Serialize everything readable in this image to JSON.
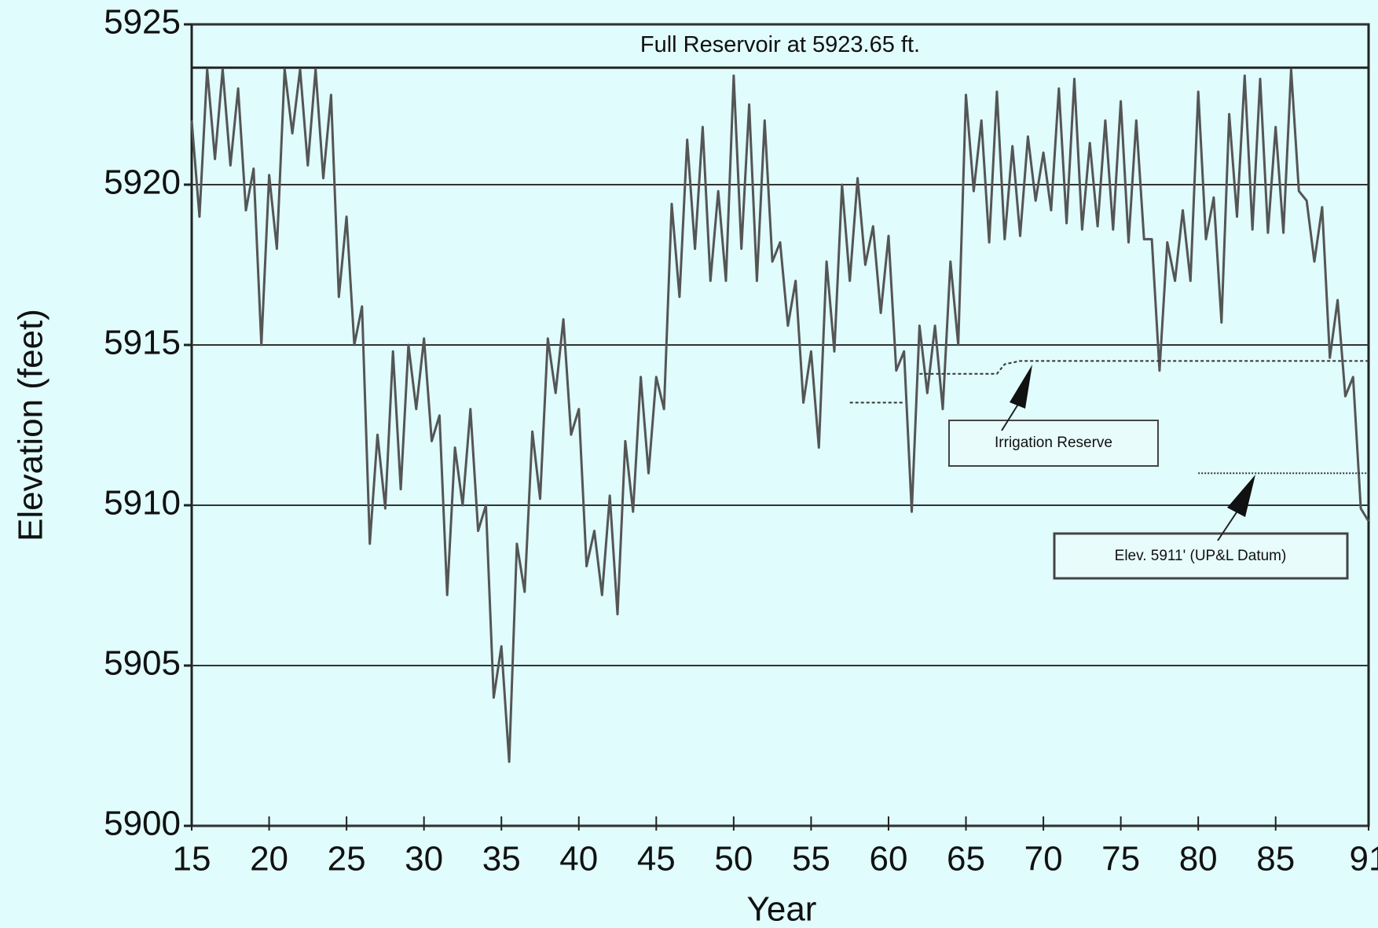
{
  "chart_data": {
    "type": "line",
    "xlabel": "Year",
    "ylabel": "Elevation (feet)",
    "color": "#555555",
    "x": [
      15,
      15.5,
      16,
      16.5,
      17,
      17.5,
      18,
      18.5,
      19,
      19.5,
      20,
      20.5,
      21,
      21.5,
      22,
      22.5,
      23,
      23.5,
      24,
      24.5,
      25,
      25.5,
      26,
      26.5,
      27,
      27.5,
      28,
      28.5,
      29,
      29.5,
      30,
      30.5,
      31,
      31.5,
      32,
      32.5,
      33,
      33.5,
      34,
      34.5,
      35,
      35.5,
      36,
      36.5,
      37,
      37.5,
      38,
      38.5,
      39,
      39.5,
      40,
      40.5,
      41,
      41.5,
      42,
      42.5,
      43,
      43.5,
      44,
      44.5,
      45,
      45.5,
      46,
      46.5,
      47,
      47.5,
      48,
      48.5,
      49,
      49.5,
      50,
      50.5,
      51,
      51.5,
      52,
      52.5,
      53,
      53.5,
      54,
      54.5,
      55,
      55.5,
      56,
      56.5,
      57,
      57.5,
      58,
      58.5,
      59,
      59.5,
      60,
      60.5,
      61,
      61.5,
      62,
      62.5,
      63,
      63.5,
      64,
      64.5,
      65,
      65.5,
      66,
      66.5,
      67,
      67.5,
      68,
      68.5,
      69,
      69.5,
      70,
      70.5,
      71,
      71.5,
      72,
      72.5,
      73,
      73.5,
      74,
      74.5,
      75,
      75.5,
      76,
      76.5,
      77,
      77.5,
      78,
      78.5,
      79,
      79.5,
      80,
      80.5,
      81,
      81.5,
      82,
      82.5,
      83,
      83.5,
      84,
      84.5,
      85,
      85.5,
      86,
      86.5,
      87,
      87.5,
      88,
      88.5,
      89,
      89.5,
      90,
      90.5,
      91
    ],
    "values": [
      5922,
      5919,
      5923.6,
      5920.8,
      5923.6,
      5920.6,
      5923,
      5919.2,
      5920.5,
      5915,
      5920.3,
      5918,
      5923.6,
      5921.6,
      5923.6,
      5920.6,
      5923.6,
      5920.2,
      5922.8,
      5916.5,
      5919,
      5915,
      5916.2,
      5908.8,
      5912.2,
      5909.9,
      5914.8,
      5910.5,
      5915,
      5913,
      5915.2,
      5912,
      5912.8,
      5907.2,
      5911.8,
      5910,
      5913,
      5909.2,
      5910,
      5904,
      5905.6,
      5902,
      5908.8,
      5907.3,
      5912.3,
      5910.2,
      5915.2,
      5913.5,
      5915.8,
      5912.2,
      5913,
      5908.1,
      5909.2,
      5907.2,
      5910.3,
      5906.6,
      5912,
      5909.8,
      5914,
      5911,
      5914,
      5913,
      5919.4,
      5916.5,
      5921.4,
      5918,
      5921.8,
      5917,
      5919.8,
      5917,
      5923.4,
      5918,
      5922.5,
      5917,
      5922,
      5917.6,
      5918.2,
      5915.6,
      5917,
      5913.2,
      5914.8,
      5911.8,
      5917.6,
      5914.8,
      5920,
      5917,
      5920.2,
      5917.5,
      5918.7,
      5916,
      5918.4,
      5914.2,
      5914.8,
      5909.8,
      5915.6,
      5913.5,
      5915.6,
      5913,
      5917.6,
      5915,
      5922.8,
      5919.8,
      5922,
      5918.2,
      5922.9,
      5918.3,
      5921.2,
      5918.4,
      5921.5,
      5919.5,
      5921,
      5919.2,
      5923,
      5918.8,
      5923.3,
      5918.6,
      5921.3,
      5918.7,
      5922,
      5918.6,
      5922.6,
      5918.2,
      5922,
      5918.3,
      5918.3,
      5914.2,
      5918.2,
      5917,
      5919.2,
      5917,
      5922.9,
      5918.3,
      5919.6,
      5915.7,
      5922.2,
      5919,
      5923.4,
      5918.6,
      5923.3,
      5918.5,
      5921.8,
      5918.5,
      5923.6,
      5919.8,
      5919.5,
      5917.6,
      5919.3,
      5914.6,
      5916.4,
      5913.4,
      5914,
      5909.9,
      5909.5
    ],
    "xlim": [
      15,
      91
    ],
    "xticks": [
      15,
      20,
      25,
      30,
      35,
      40,
      45,
      50,
      55,
      60,
      65,
      70,
      75,
      80,
      85,
      91
    ],
    "ylim": [
      5900,
      5925
    ],
    "yticks": [
      5900,
      5905,
      5910,
      5915,
      5920,
      5925
    ],
    "grid": true,
    "full_reservoir": {
      "label": "Full Reservoir at 5923.65 ft.",
      "value": 5923.65
    },
    "irrigation_reserve": {
      "label": "Irrigation Reserve",
      "x": [
        57.5,
        61,
        61.5,
        62,
        67,
        67.5,
        68.5,
        91
      ],
      "values": [
        5913.2,
        5913.2,
        null,
        5914.1,
        5914.1,
        5914.4,
        5914.5,
        5914.5
      ]
    },
    "datum": {
      "label": "Elev. 5911' (UP&L Datum)",
      "value": 5911,
      "x": [
        80,
        91
      ]
    }
  }
}
